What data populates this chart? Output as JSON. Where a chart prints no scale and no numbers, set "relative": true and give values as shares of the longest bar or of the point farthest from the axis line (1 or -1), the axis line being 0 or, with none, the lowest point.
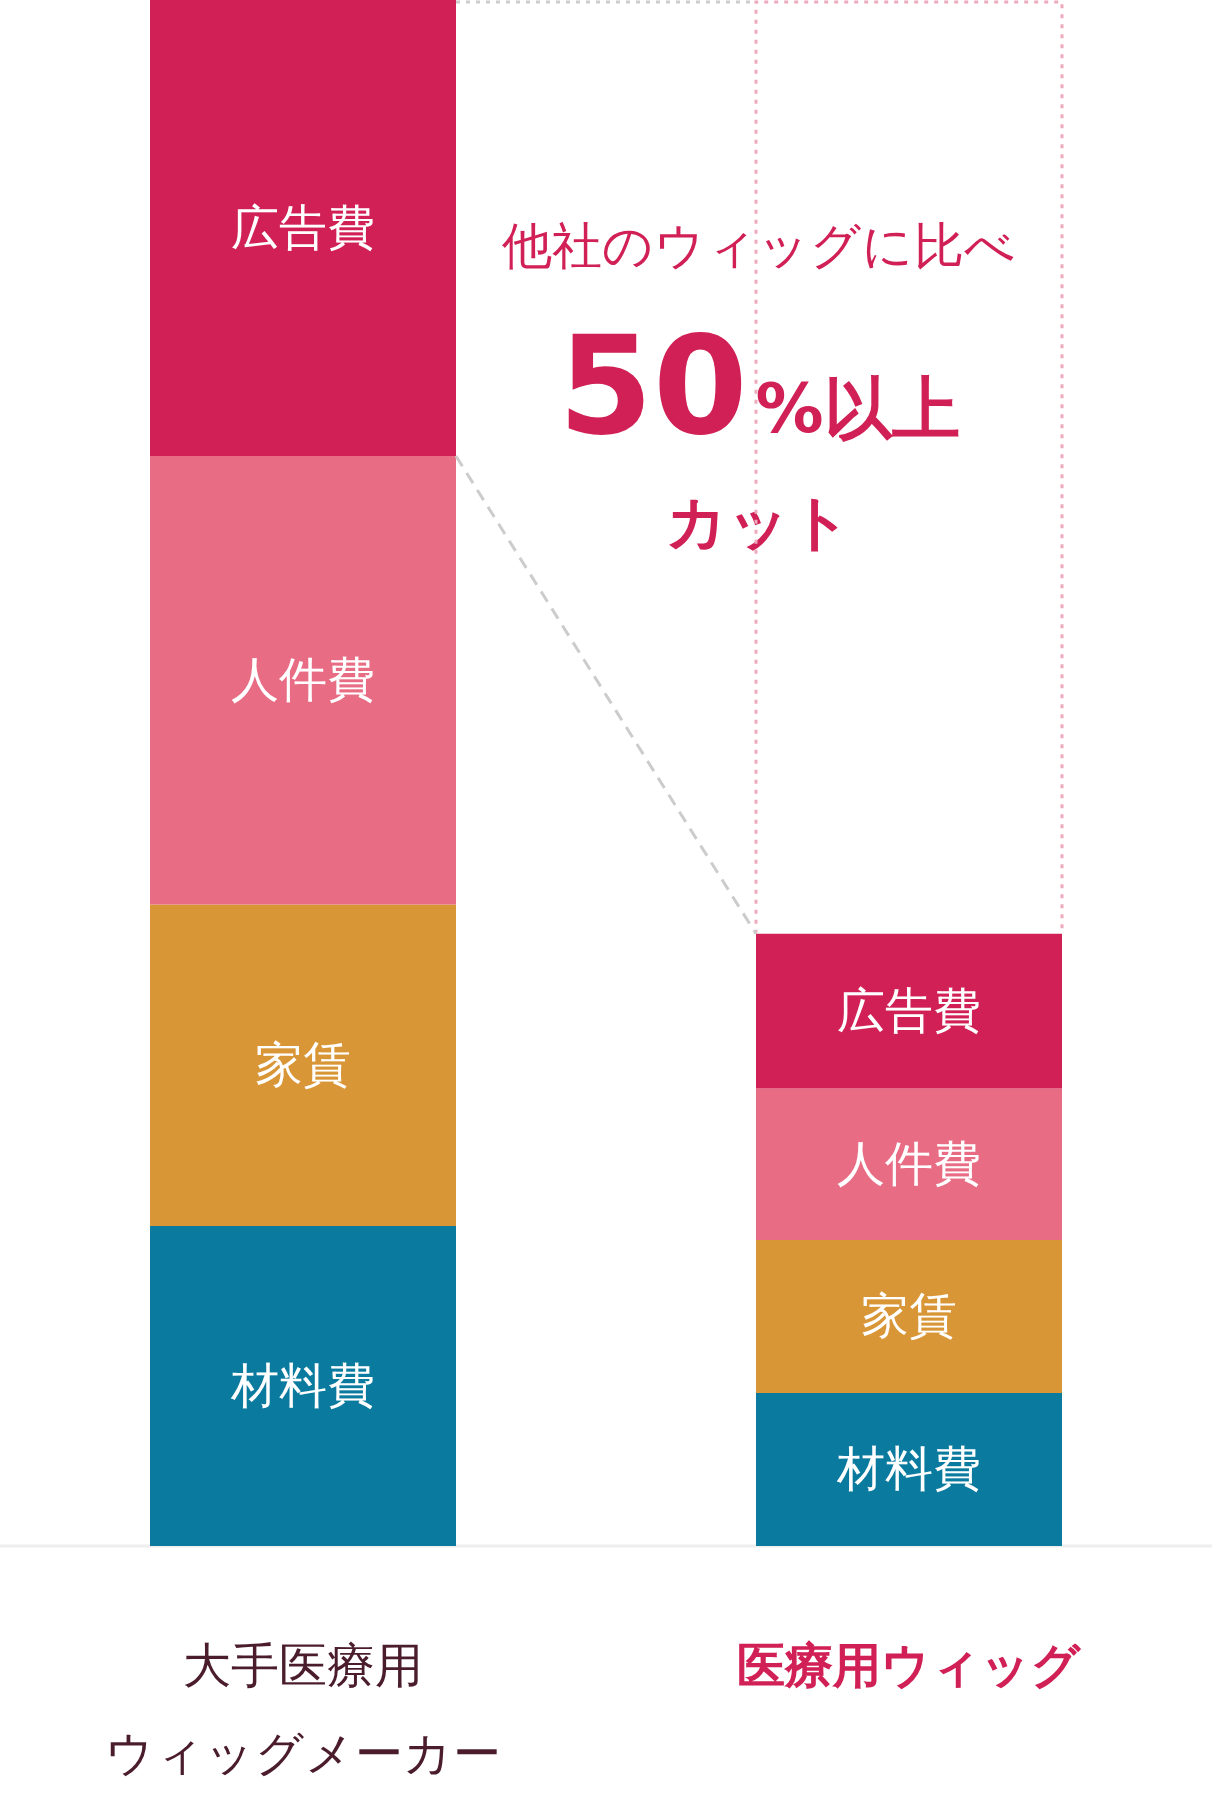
{
  "chart_data": {
    "type": "bar",
    "stacked": true,
    "relative": true,
    "categories": [
      "大手医療用ウィッグメーカー",
      "医療用ウィッグ"
    ],
    "series": [
      {
        "name": "材料費",
        "color": "#0a7b9f",
        "values": [
          0.207,
          0.099
        ]
      },
      {
        "name": "家賃",
        "color": "#d99637",
        "values": [
          0.208,
          0.099
        ]
      },
      {
        "name": "人件費",
        "color": "#e86c84",
        "values": [
          0.29,
          0.098
        ]
      },
      {
        "name": "広告費",
        "color": "#d12055",
        "values": [
          0.295,
          0.1
        ]
      }
    ],
    "annotations": [
      "他社のウィッグに比べ",
      "50%以上",
      "カット"
    ]
  }
}
